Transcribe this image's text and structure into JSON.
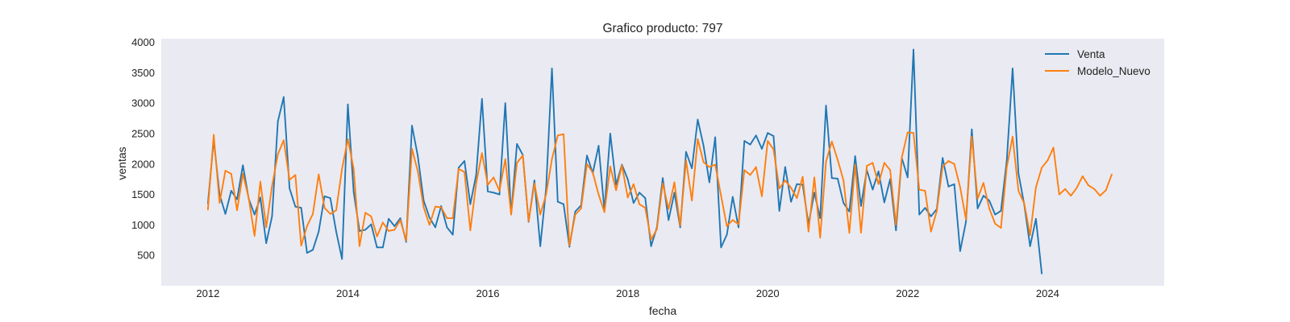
{
  "chart_data": {
    "type": "line",
    "title": "Grafico producto: 797",
    "xlabel": "fecha",
    "ylabel": "ventas",
    "x_start": "2012-01",
    "x_frequency": "monthly",
    "xlim": [
      "2011-05",
      "2025-09"
    ],
    "ylim": [
      0,
      4060
    ],
    "x_ticks": [
      "2012",
      "2014",
      "2016",
      "2018",
      "2020",
      "2022",
      "2024"
    ],
    "y_ticks": [
      500,
      1000,
      1500,
      2000,
      2500,
      3000,
      3500,
      4000
    ],
    "grid": false,
    "legend_position": "top-right",
    "background_color": "#eaeaf2",
    "series": [
      {
        "name": "Venta",
        "color": "#1f77b4",
        "values": [
          1350,
          2400,
          1500,
          1180,
          1560,
          1420,
          1980,
          1430,
          1170,
          1450,
          700,
          1140,
          2700,
          3100,
          1600,
          1300,
          1280,
          540,
          590,
          890,
          1470,
          1440,
          890,
          440,
          2980,
          1540,
          900,
          920,
          1010,
          630,
          630,
          1100,
          980,
          1110,
          720,
          2630,
          2130,
          1400,
          1120,
          960,
          1310,
          960,
          840,
          1940,
          2050,
          1340,
          1820,
          3070,
          1550,
          1530,
          1500,
          3000,
          1170,
          2330,
          2150,
          1050,
          1730,
          650,
          1600,
          3570,
          1380,
          1340,
          640,
          1220,
          1320,
          2140,
          1850,
          2300,
          1240,
          2500,
          1660,
          1990,
          1750,
          1360,
          1530,
          1440,
          650,
          960,
          1770,
          1080,
          1530,
          960,
          2200,
          1930,
          2730,
          2300,
          1700,
          2440,
          630,
          840,
          1460,
          960,
          2380,
          2320,
          2470,
          2250,
          2510,
          2460,
          1230,
          1950,
          1380,
          1670,
          1660,
          1010,
          1530,
          1110,
          2960,
          1770,
          1760,
          1360,
          1220,
          2130,
          1310,
          1900,
          1580,
          1880,
          1370,
          1750,
          910,
          2100,
          1780,
          3880,
          1170,
          1280,
          1140,
          1260,
          2100,
          1630,
          1670,
          570,
          1050,
          2570,
          1270,
          1480,
          1400,
          1170,
          1230,
          2060,
          3570,
          1850,
          1330,
          650,
          1100,
          200
        ]
      },
      {
        "name": "Modelo_Nuevo",
        "color": "#ff7f0e",
        "values": [
          1250,
          2480,
          1360,
          1890,
          1840,
          1240,
          1840,
          1440,
          820,
          1710,
          960,
          1640,
          2160,
          2390,
          1740,
          1820,
          660,
          980,
          1180,
          1830,
          1280,
          1180,
          1240,
          1920,
          2410,
          1920,
          650,
          1200,
          1140,
          810,
          1040,
          900,
          920,
          1080,
          740,
          2250,
          1880,
          1290,
          1000,
          1300,
          1290,
          1110,
          1110,
          1920,
          1870,
          910,
          1680,
          2180,
          1660,
          1780,
          1560,
          2080,
          1170,
          2020,
          2140,
          1060,
          1680,
          1170,
          1500,
          2080,
          2470,
          2490,
          660,
          1170,
          1270,
          2000,
          1860,
          1500,
          1210,
          1960,
          1570,
          1980,
          1450,
          1670,
          1340,
          1280,
          760,
          930,
          1680,
          1260,
          1700,
          990,
          2060,
          1400,
          2410,
          2030,
          1950,
          1990,
          1480,
          980,
          1080,
          1010,
          1900,
          1820,
          1950,
          1470,
          2380,
          2240,
          1600,
          1730,
          1610,
          1440,
          1790,
          890,
          1780,
          790,
          2040,
          2370,
          2070,
          1730,
          870,
          1990,
          870,
          1970,
          2020,
          1670,
          2020,
          1900,
          1000,
          2110,
          2520,
          2510,
          1580,
          1560,
          890,
          1230,
          1960,
          2050,
          2000,
          1620,
          1090,
          2450,
          1430,
          1690,
          1270,
          1020,
          950,
          1950,
          2450,
          1560,
          1350,
          830,
          1620,
          1940,
          2060,
          2270,
          1500,
          1590,
          1480,
          1610,
          1800,
          1650,
          1590,
          1480,
          1570,
          1830
        ]
      }
    ]
  }
}
